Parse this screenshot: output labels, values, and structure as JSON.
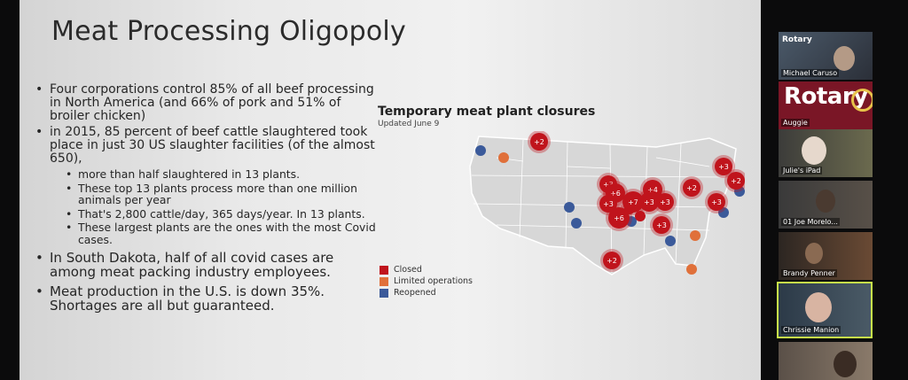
{
  "slide": {
    "title": "Meat Processing Oligopoly",
    "bullets": [
      {
        "level": 1,
        "text": "Four corporations control 85% of all beef processing in North America (and 66% of pork and 51% of broiler chicken)"
      },
      {
        "level": 1,
        "text": "in 2015, 85 percent of beef cattle slaughtered took place in just 30 US slaughter facilities (of the almost 650),"
      },
      {
        "level": 2,
        "text": "more than half slaughtered in 13 plants."
      },
      {
        "level": 2,
        "text": "These top 13 plants process more than one million animals per year"
      },
      {
        "level": 2,
        "text": "That's 2,800 cattle/day, 365 days/year. In 13 plants."
      },
      {
        "level": 2,
        "text": "These largest plants are the ones with the most Covid cases."
      },
      {
        "level": 1,
        "text": "In South Dakota, half of all covid cases are among meat packing industry employees."
      },
      {
        "level": 1,
        "text": "Meat production in the U.S. is down 35%. Shortages are all but guaranteed."
      }
    ],
    "map": {
      "title": "Temporary meat plant closures",
      "subtitle": "Updated June 9",
      "legend": [
        {
          "label": "Closed",
          "color": "#c0141c"
        },
        {
          "label": "Limited operations",
          "color": "#e0703a"
        },
        {
          "label": "Reopened",
          "color": "#3b5a9a"
        }
      ],
      "clusters": [
        "+2",
        "+3",
        "+6",
        "+3",
        "+6",
        "+7",
        "+4",
        "+3",
        "+3",
        "+3",
        "+2",
        "+3",
        "+2",
        "+3",
        "+2"
      ]
    }
  },
  "participants": [
    {
      "name": "Michael Caruso",
      "tile_text": "Rotary"
    },
    {
      "name": "Auggie",
      "tile_text": "Rotary"
    },
    {
      "name": "Julie's iPad",
      "tile_text": ""
    },
    {
      "name": "01 Joe Morelo...",
      "tile_text": ""
    },
    {
      "name": "Brandy Penner",
      "tile_text": ""
    },
    {
      "name": "Chrissie Manion",
      "tile_text": ""
    },
    {
      "name": "",
      "tile_text": ""
    }
  ]
}
